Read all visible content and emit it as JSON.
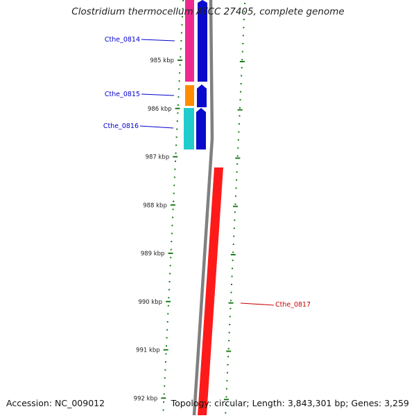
{
  "title": "Clostridium thermocellum ATCC 27405, complete genome",
  "footer": {
    "accession": "Accession: NC_009012",
    "topology": "Topology: circular; Length: 3,843,301 bp; Genes: 3,259"
  },
  "colors": {
    "tick_green": "#1a7a1a",
    "blue_label": "#0000cc",
    "red_label": "#cc0000",
    "pink": "#ee2a90",
    "orange": "#ff8c00",
    "cyan": "#22cccc",
    "blue": "#0a0acc",
    "red": "#ff1a1a",
    "gray": "#808080"
  },
  "kbp_ticks": [
    "985 kbp",
    "986 kbp",
    "987 kbp",
    "988 kbp",
    "989 kbp",
    "990 kbp",
    "991 kbp",
    "992 kbp"
  ],
  "genes": [
    {
      "label": "Cthe_0814",
      "strand": "+",
      "cog_color": "pink"
    },
    {
      "label": "Cthe_0815",
      "strand": "+",
      "cog_color": "orange"
    },
    {
      "label": "Cthe_0816",
      "strand": "+",
      "cog_color": "cyan"
    },
    {
      "label": "Cthe_0817",
      "strand": "-",
      "cog_color": "red"
    }
  ]
}
